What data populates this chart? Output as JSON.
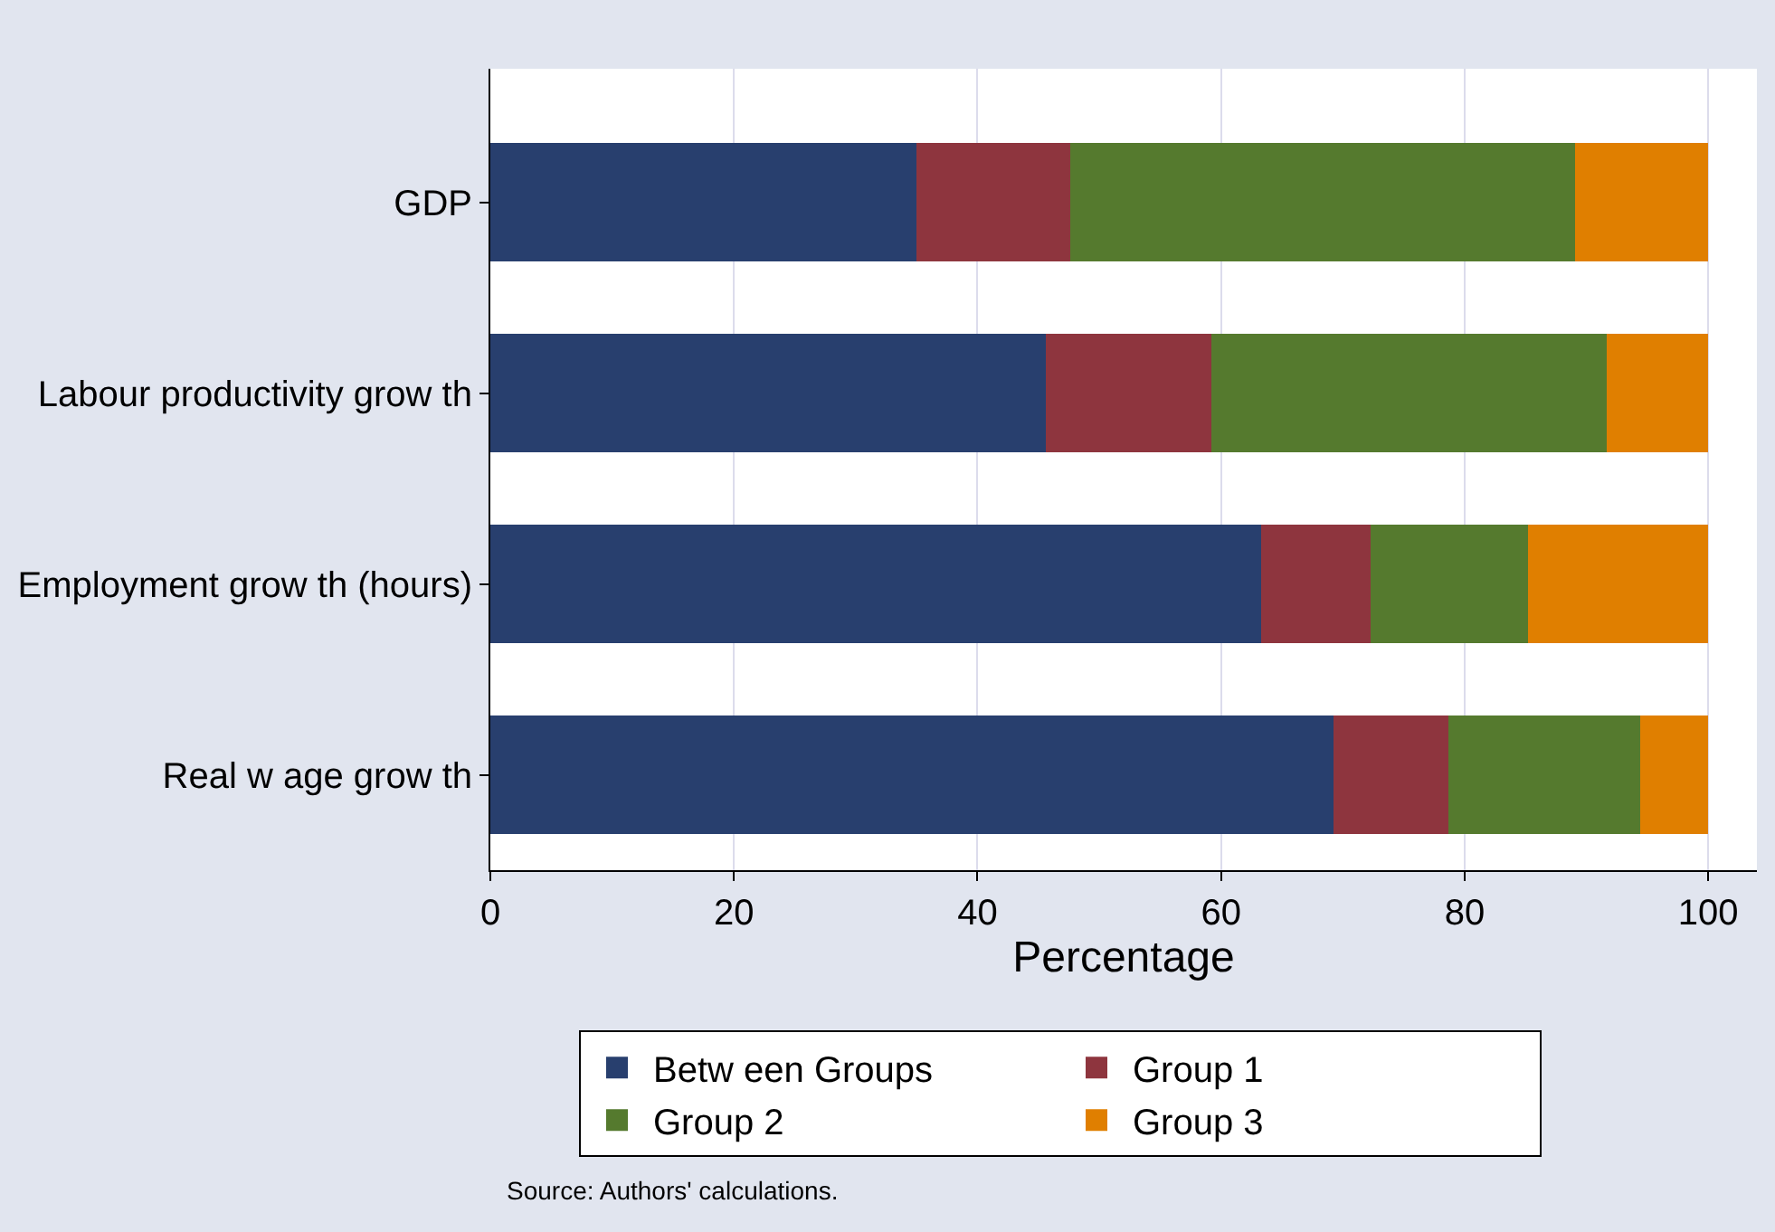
{
  "chart_data": {
    "type": "bar",
    "orientation": "horizontal",
    "stacked": true,
    "categories": [
      "GDP",
      "Labour productivity grow th",
      "Employment grow th (hours)",
      "Real w age grow th"
    ],
    "series": [
      {
        "name": "Betw een Groups",
        "color": "#283f6e",
        "values": [
          35.0,
          45.6,
          63.3,
          69.2
        ]
      },
      {
        "name": "Group 1",
        "color": "#8e353e",
        "values": [
          12.6,
          13.6,
          9.0,
          9.5
        ]
      },
      {
        "name": "Group 2",
        "color": "#557a2e",
        "values": [
          41.5,
          32.5,
          12.9,
          15.7
        ]
      },
      {
        "name": "Group 3",
        "color": "#e07f00",
        "values": [
          10.9,
          8.3,
          14.8,
          5.6
        ]
      }
    ],
    "xlabel": "Percentage",
    "xlim": [
      0,
      104
    ],
    "xticks": [
      0,
      20,
      40,
      60,
      80,
      100
    ],
    "grid": "x",
    "legend": "bottom",
    "annotations": [
      "Source: Authors' calculations."
    ]
  }
}
